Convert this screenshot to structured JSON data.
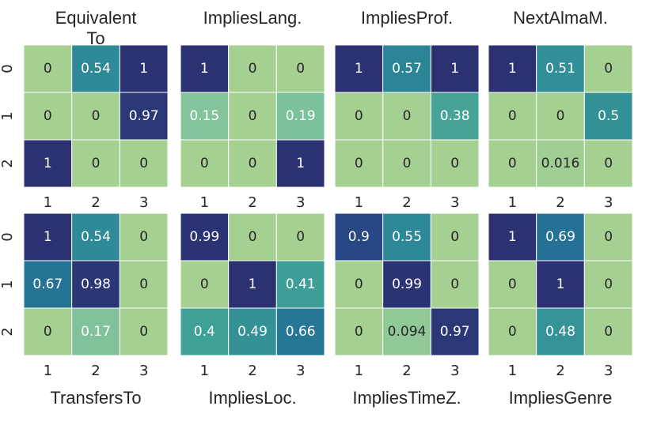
{
  "chart_data": [
    {
      "type": "heatmap",
      "title": "Equivalent To",
      "x_categories": [
        1,
        2,
        3
      ],
      "y_categories": [
        0,
        1,
        2
      ],
      "vlim": [
        0,
        1
      ],
      "values": [
        [
          0,
          0.54,
          1
        ],
        [
          0,
          0,
          0.97
        ],
        [
          1,
          0,
          0
        ]
      ]
    },
    {
      "type": "heatmap",
      "title": "ImpliesLang.",
      "x_categories": [
        1,
        2,
        3
      ],
      "vlim": [
        0,
        1
      ],
      "values": [
        [
          1,
          0,
          0
        ],
        [
          0.15,
          0,
          0.19
        ],
        [
          0,
          0,
          1
        ]
      ]
    },
    {
      "type": "heatmap",
      "title": "ImpliesProf.",
      "x_categories": [
        1,
        2,
        3
      ],
      "vlim": [
        0,
        1
      ],
      "values": [
        [
          1,
          0.57,
          1
        ],
        [
          0,
          0,
          0.38
        ],
        [
          0,
          0,
          0
        ]
      ]
    },
    {
      "type": "heatmap",
      "title": "NextAlmaM.",
      "x_categories": [
        1,
        2,
        3
      ],
      "vlim": [
        0,
        1
      ],
      "values": [
        [
          1,
          0.51,
          0
        ],
        [
          0,
          0,
          0.5
        ],
        [
          0,
          0.016,
          0
        ]
      ]
    },
    {
      "type": "heatmap",
      "xlabel": "TransfersTo",
      "x_categories": [
        1,
        2,
        3
      ],
      "y_categories": [
        0,
        1,
        2
      ],
      "vlim": [
        0,
        1
      ],
      "values": [
        [
          1,
          0.54,
          0
        ],
        [
          0.67,
          0.98,
          0
        ],
        [
          0,
          0.17,
          0
        ]
      ]
    },
    {
      "type": "heatmap",
      "xlabel": "ImpliesLoc.",
      "x_categories": [
        1,
        2,
        3
      ],
      "vlim": [
        0,
        1
      ],
      "values": [
        [
          0.99,
          0,
          0
        ],
        [
          0,
          1,
          0.41
        ],
        [
          0.4,
          0.49,
          0.66
        ]
      ]
    },
    {
      "type": "heatmap",
      "xlabel": "ImpliesTimeZ.",
      "x_categories": [
        1,
        2,
        3
      ],
      "vlim": [
        0,
        1
      ],
      "values": [
        [
          0.9,
          0.55,
          0
        ],
        [
          0,
          0.99,
          0
        ],
        [
          0,
          0.094,
          0.97
        ]
      ]
    },
    {
      "type": "heatmap",
      "xlabel": "ImpliesGenre",
      "x_categories": [
        1,
        2,
        3
      ],
      "vlim": [
        0,
        1
      ],
      "values": [
        [
          1,
          0.69,
          0
        ],
        [
          0,
          1,
          0
        ],
        [
          0,
          0.48,
          0
        ]
      ]
    }
  ]
}
